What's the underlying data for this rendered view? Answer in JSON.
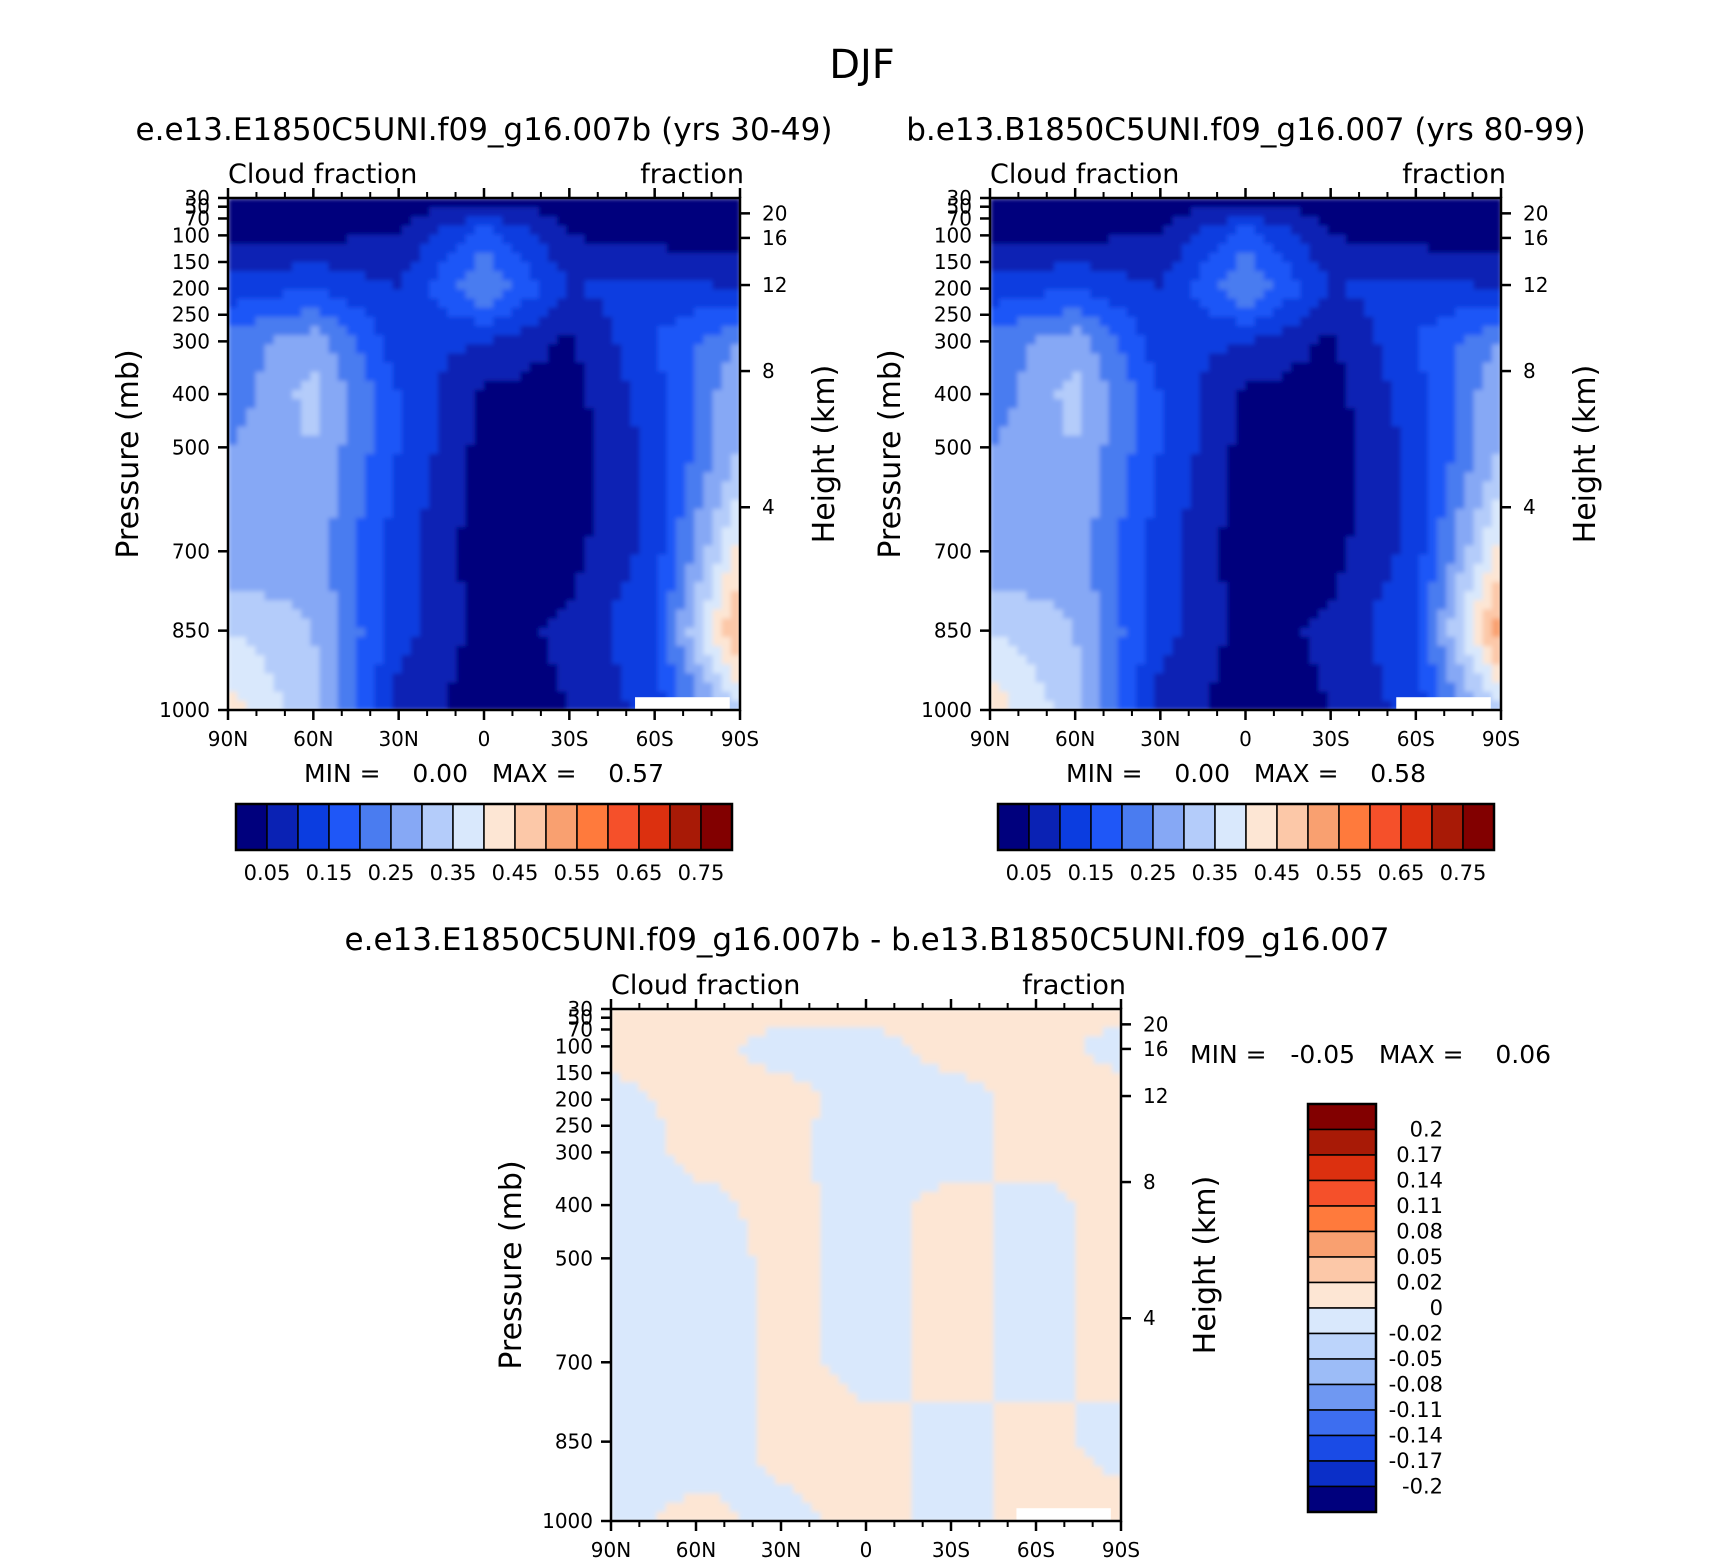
{
  "main_title": "DJF",
  "colors": {
    "clevs": [
      "#00007d",
      "#0a22b4",
      "#0b3de0",
      "#1f57f7",
      "#4a7cf0",
      "#86a8f5",
      "#b4ccfa",
      "#d9e8fc",
      "#fde6d4",
      "#fcc8a8",
      "#f9a070",
      "#ff7a3c",
      "#f5502a",
      "#dc300f",
      "#a81a06",
      "#820000"
    ],
    "diff": [
      "#00007d",
      "#0b2fc8",
      "#1a4be6",
      "#3d6ef0",
      "#6f98f2",
      "#9cbcf7",
      "#bcd4fb",
      "#d9e8fc",
      "#fde6d4",
      "#fcc8a8",
      "#f9a070",
      "#ff7a3c",
      "#f5502a",
      "#dc300f",
      "#a81a06",
      "#820000"
    ]
  },
  "panels": [
    {
      "title": "e.e13.E1850C5UNI.f09_g16.007b (yrs 30-49)",
      "left_label": "Cloud fraction",
      "right_label": "fraction",
      "min_text": "MIN =    0.00   MAX =    0.57"
    },
    {
      "title": "b.e13.B1850C5UNI.f09_g16.007 (yrs 80-99)",
      "left_label": "Cloud fraction",
      "right_label": "fraction",
      "min_text": "MIN =    0.00   MAX =    0.58"
    },
    {
      "title": "e.e13.E1850C5UNI.f09_g16.007b - b.e13.B1850C5UNI.f09_g16.007",
      "left_label": "Cloud fraction",
      "right_label": "fraction",
      "min_text": "MIN =   -0.05   MAX =    0.06"
    }
  ],
  "axes": {
    "ylabel": "Pressure (mb)",
    "y2label": "Height (km)",
    "pressure_ticks": [
      "30",
      "50",
      "70",
      "100",
      "150",
      "200",
      "250",
      "300",
      "400",
      "500",
      "700",
      "850",
      "1000"
    ],
    "height_ticks": [
      "20",
      "16",
      "12",
      "8",
      "4"
    ],
    "lat_ticks": [
      "90N",
      "60N",
      "30N",
      "0",
      "30S",
      "60S",
      "90S"
    ]
  },
  "colorbar_labels": [
    "0.05",
    "0.15",
    "0.25",
    "0.35",
    "0.45",
    "0.55",
    "0.65",
    "0.75"
  ],
  "diff_colorbar_labels": [
    "0.2",
    "0.17",
    "0.14",
    "0.11",
    "0.08",
    "0.05",
    "0.02",
    "0",
    "-0.02",
    "-0.05",
    "-0.08",
    "-0.11",
    "-0.14",
    "-0.17",
    "-0.2"
  ],
  "chart_data": [
    {
      "type": "heatmap",
      "title": "e.e13.E1850C5UNI.f09_g16.007b (yrs 30-49)",
      "xlabel": "",
      "ylabel": "Pressure (mb)",
      "y2label": "Height (km)",
      "x": [
        "90N",
        "60N",
        "30N",
        "0",
        "30S",
        "60S",
        "90S"
      ],
      "x_values": [
        90,
        60,
        30,
        0,
        -30,
        -60,
        -90
      ],
      "y_pressure": [
        1000,
        850,
        700,
        500,
        400,
        300,
        200,
        100,
        30
      ],
      "values": [
        [
          0.42,
          0.32,
          0.08,
          0.02,
          0.05,
          0.12,
          0.35
        ],
        [
          0.35,
          0.3,
          0.12,
          0.03,
          0.06,
          0.15,
          0.52
        ],
        [
          0.25,
          0.28,
          0.12,
          0.02,
          0.03,
          0.12,
          0.42
        ],
        [
          0.25,
          0.3,
          0.15,
          0.03,
          0.02,
          0.12,
          0.3
        ],
        [
          0.22,
          0.32,
          0.15,
          0.04,
          0.03,
          0.13,
          0.3
        ],
        [
          0.22,
          0.28,
          0.12,
          0.1,
          0.04,
          0.15,
          0.25
        ],
        [
          0.12,
          0.15,
          0.1,
          0.25,
          0.1,
          0.12,
          0.1
        ],
        [
          0.04,
          0.04,
          0.05,
          0.18,
          0.05,
          0.03,
          0.02
        ],
        [
          0.02,
          0.02,
          0.02,
          0.03,
          0.02,
          0.02,
          0.02
        ]
      ],
      "min": 0.0,
      "max": 0.57,
      "levels": [
        0.05,
        0.1,
        0.15,
        0.2,
        0.25,
        0.3,
        0.35,
        0.4,
        0.45,
        0.5,
        0.55,
        0.6,
        0.65,
        0.7,
        0.75
      ]
    },
    {
      "type": "heatmap",
      "title": "b.e13.B1850C5UNI.f09_g16.007 (yrs 80-99)",
      "xlabel": "",
      "ylabel": "Pressure (mb)",
      "y2label": "Height (km)",
      "x": [
        "90N",
        "60N",
        "30N",
        "0",
        "30S",
        "60S",
        "90S"
      ],
      "x_values": [
        90,
        60,
        30,
        0,
        -30,
        -60,
        -90
      ],
      "y_pressure": [
        1000,
        850,
        700,
        500,
        400,
        300,
        200,
        100,
        30
      ],
      "values": [
        [
          0.43,
          0.32,
          0.08,
          0.02,
          0.05,
          0.12,
          0.35
        ],
        [
          0.35,
          0.3,
          0.12,
          0.03,
          0.06,
          0.15,
          0.54
        ],
        [
          0.25,
          0.28,
          0.12,
          0.02,
          0.03,
          0.12,
          0.42
        ],
        [
          0.25,
          0.3,
          0.15,
          0.03,
          0.02,
          0.12,
          0.3
        ],
        [
          0.22,
          0.32,
          0.15,
          0.04,
          0.03,
          0.13,
          0.3
        ],
        [
          0.22,
          0.28,
          0.12,
          0.1,
          0.04,
          0.15,
          0.25
        ],
        [
          0.12,
          0.15,
          0.1,
          0.25,
          0.1,
          0.12,
          0.1
        ],
        [
          0.04,
          0.04,
          0.05,
          0.18,
          0.05,
          0.03,
          0.02
        ],
        [
          0.02,
          0.02,
          0.02,
          0.03,
          0.02,
          0.02,
          0.02
        ]
      ],
      "min": 0.0,
      "max": 0.58,
      "levels": [
        0.05,
        0.1,
        0.15,
        0.2,
        0.25,
        0.3,
        0.35,
        0.4,
        0.45,
        0.5,
        0.55,
        0.6,
        0.65,
        0.7,
        0.75
      ]
    },
    {
      "type": "heatmap",
      "title": "e.e13.E1850C5UNI.f09_g16.007b - b.e13.B1850C5UNI.f09_g16.007",
      "xlabel": "",
      "ylabel": "Pressure (mb)",
      "y2label": "Height (km)",
      "x": [
        "90N",
        "60N",
        "30N",
        "0",
        "30S",
        "60S",
        "90S"
      ],
      "x_values": [
        90,
        60,
        30,
        0,
        -30,
        -60,
        -90
      ],
      "y_pressure": [
        1000,
        850,
        700,
        500,
        400,
        300,
        200,
        100,
        30
      ],
      "values": [
        [
          -0.01,
          0.01,
          -0.01,
          0.01,
          -0.01,
          0.01,
          0.01
        ],
        [
          -0.01,
          -0.02,
          0.01,
          0.01,
          -0.01,
          0.01,
          -0.01
        ],
        [
          -0.01,
          -0.02,
          0.01,
          -0.01,
          0.01,
          -0.01,
          0.01
        ],
        [
          -0.01,
          -0.02,
          0.01,
          -0.01,
          0.01,
          -0.01,
          0.01
        ],
        [
          -0.01,
          -0.01,
          0.01,
          -0.01,
          0.01,
          -0.01,
          0.01
        ],
        [
          -0.02,
          0.01,
          0.01,
          -0.02,
          -0.01,
          0.01,
          0.01
        ],
        [
          -0.01,
          0.01,
          0.01,
          -0.01,
          -0.01,
          0.01,
          0.01
        ],
        [
          0.01,
          0.01,
          -0.01,
          -0.01,
          0.01,
          0.01,
          -0.01
        ],
        [
          0.01,
          0.01,
          0.01,
          0.01,
          0.01,
          0.01,
          0.01
        ]
      ],
      "min": -0.05,
      "max": 0.06,
      "levels": [
        -0.2,
        -0.17,
        -0.14,
        -0.11,
        -0.08,
        -0.05,
        -0.02,
        0,
        0.02,
        0.05,
        0.08,
        0.11,
        0.14,
        0.17,
        0.2
      ]
    }
  ]
}
